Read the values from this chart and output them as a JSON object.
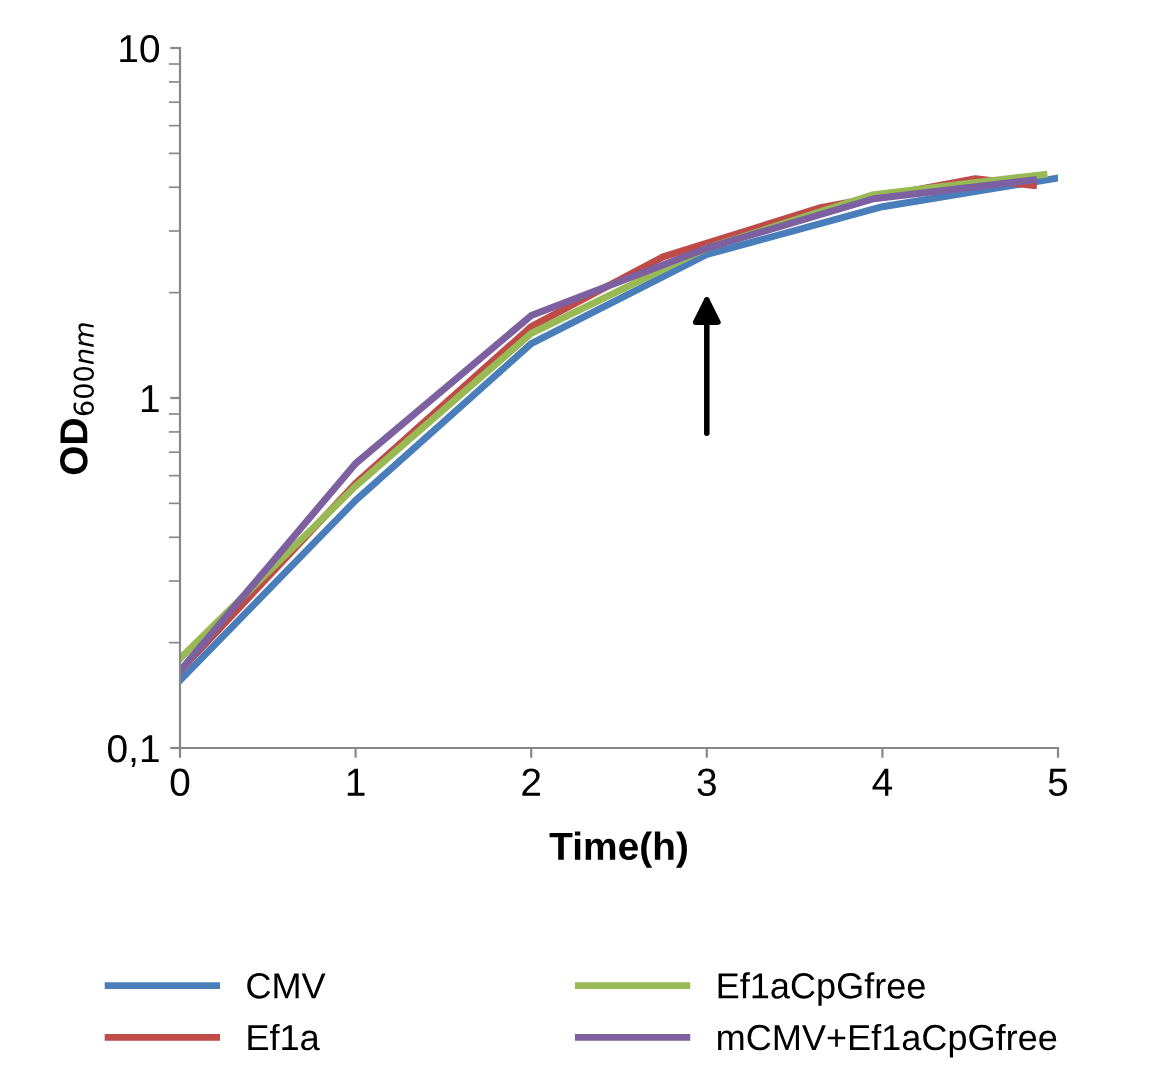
{
  "chart_data": {
    "type": "line",
    "xlabel": "Time(h)",
    "ylabel": "OD$_{600nm}$",
    "log": "y",
    "xlim": [
      0,
      5
    ],
    "xticks": [
      0,
      1,
      2,
      3,
      4,
      5
    ],
    "ylim": [
      0.1,
      10
    ],
    "yticks": [
      {
        "value": 0.1,
        "label": "0,1"
      },
      1,
      10
    ],
    "grid": false,
    "legend": "bottom",
    "marker": "none",
    "line_style": "solid",
    "series": [
      {
        "name": "CMV",
        "color": "#4a7ebb",
        "x": [
          0,
          1,
          2,
          3,
          4,
          5
        ],
        "values": [
          0.156,
          0.51,
          1.43,
          2.57,
          3.52,
          4.25
        ]
      },
      {
        "name": "Ef1a",
        "color": "#be4b48",
        "x": [
          0,
          1,
          2,
          2.75,
          3.64,
          4.53,
          4.86
        ],
        "values": [
          0.166,
          0.57,
          1.6,
          2.53,
          3.49,
          4.23,
          4.05
        ]
      },
      {
        "name": "Ef1aCpGfree",
        "color": "#98b954",
        "x": [
          0,
          1,
          2,
          3,
          3.95,
          4.92
        ],
        "values": [
          0.18,
          0.56,
          1.53,
          2.68,
          3.81,
          4.35
        ]
      },
      {
        "name": "mCMV+Ef1aCpGfree",
        "color": "#7d60a0",
        "x": [
          0,
          1,
          2,
          3,
          3.95,
          4.86
        ],
        "values": [
          0.166,
          0.65,
          1.72,
          2.68,
          3.71,
          4.2
        ]
      }
    ]
  }
}
